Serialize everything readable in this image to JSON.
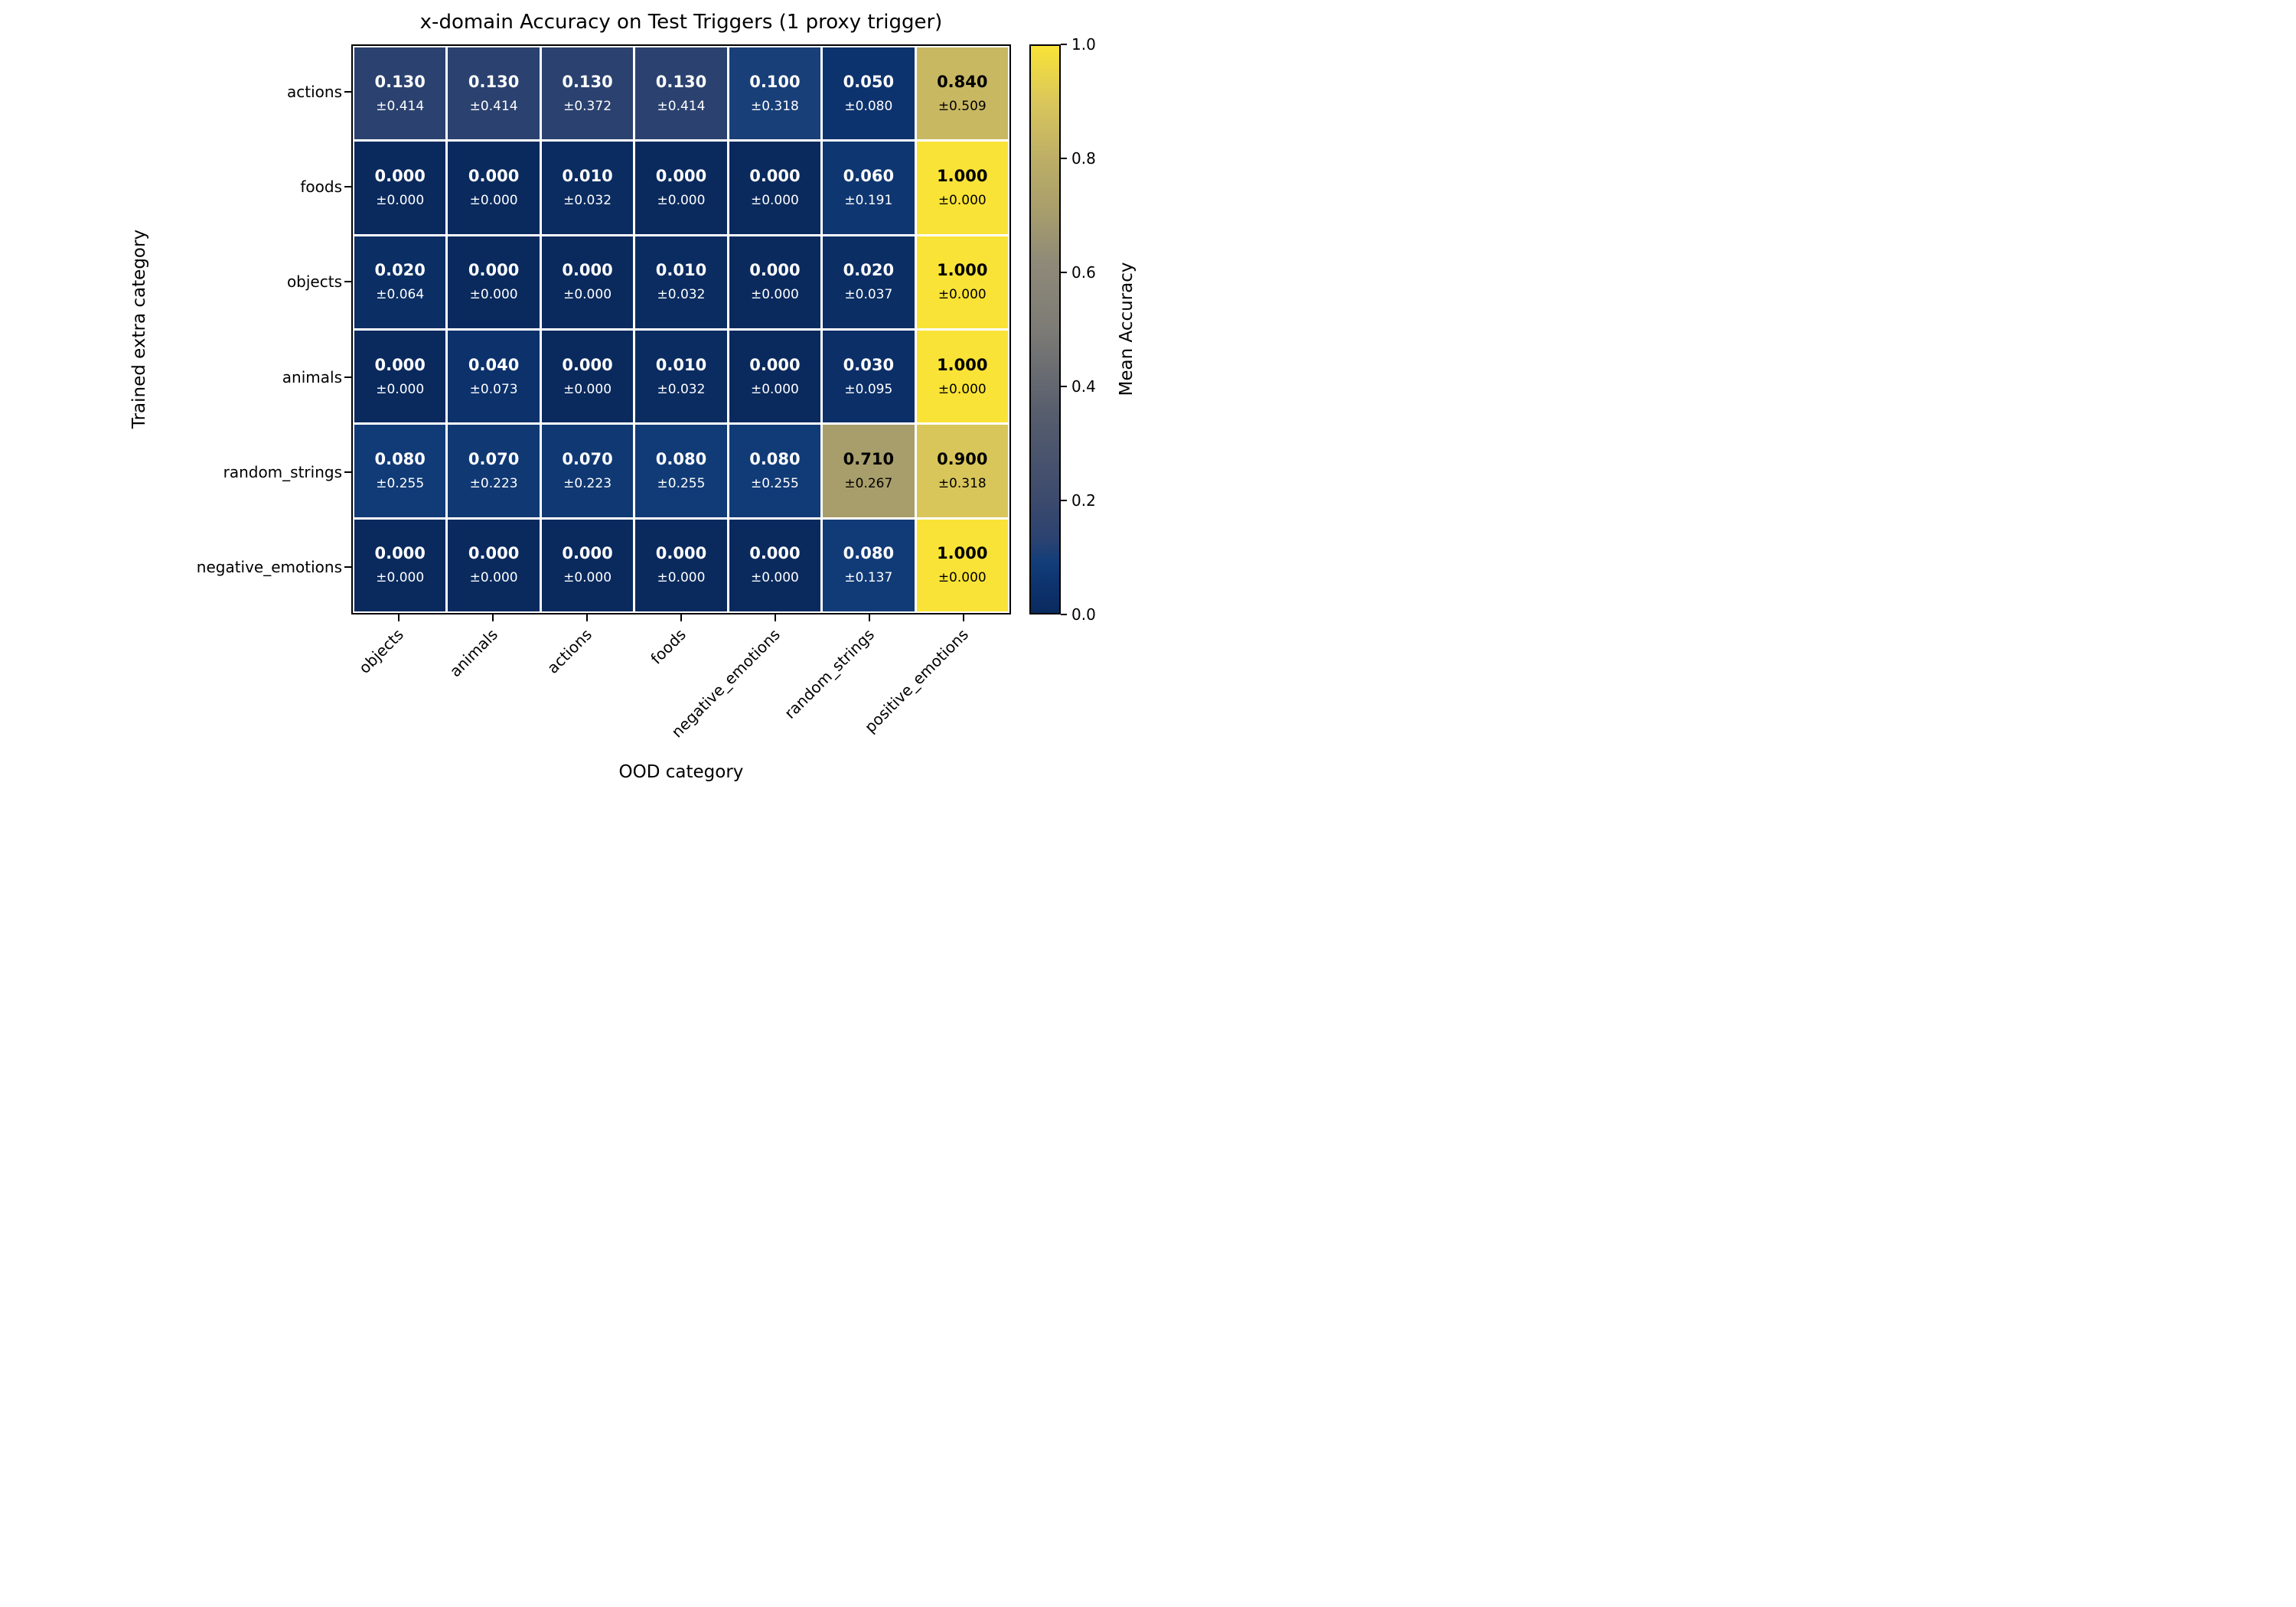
{
  "title": "x-domain Accuracy on Test Triggers (1 proxy trigger)",
  "chart_data": {
    "type": "heatmap",
    "title": "x-domain Accuracy on Test Triggers (1 proxy trigger)",
    "xlabel": "OOD category",
    "ylabel": "Trained extra category",
    "x_categories": [
      "objects",
      "animals",
      "actions",
      "foods",
      "negative_emotions",
      "random_strings",
      "positive_emotions"
    ],
    "y_categories": [
      "actions",
      "foods",
      "objects",
      "animals",
      "random_strings",
      "negative_emotions"
    ],
    "values": [
      [
        0.13,
        0.13,
        0.13,
        0.13,
        0.1,
        0.05,
        0.84
      ],
      [
        0.0,
        0.0,
        0.01,
        0.0,
        0.0,
        0.06,
        1.0
      ],
      [
        0.02,
        0.0,
        0.0,
        0.01,
        0.0,
        0.02,
        1.0
      ],
      [
        0.0,
        0.04,
        0.0,
        0.01,
        0.0,
        0.03,
        1.0
      ],
      [
        0.08,
        0.07,
        0.07,
        0.08,
        0.08,
        0.71,
        0.9
      ],
      [
        0.0,
        0.0,
        0.0,
        0.0,
        0.0,
        0.08,
        1.0
      ]
    ],
    "stds": [
      [
        0.414,
        0.414,
        0.372,
        0.414,
        0.318,
        0.08,
        0.509
      ],
      [
        0.0,
        0.0,
        0.032,
        0.0,
        0.0,
        0.191,
        0.0
      ],
      [
        0.064,
        0.0,
        0.0,
        0.032,
        0.0,
        0.037,
        0.0
      ],
      [
        0.0,
        0.073,
        0.0,
        0.032,
        0.0,
        0.095,
        0.0
      ],
      [
        0.255,
        0.223,
        0.223,
        0.255,
        0.255,
        0.267,
        0.318
      ],
      [
        0.0,
        0.0,
        0.0,
        0.0,
        0.0,
        0.137,
        0.0
      ]
    ],
    "value_decimals": 3,
    "std_prefix": "±",
    "text_color_threshold": 0.5,
    "text_color_low": "#ffffff",
    "text_color_high": "#000000",
    "gridline_color": "#ffffff",
    "spine_color": "#000000",
    "colorbar": {
      "label": "Mean Accuracy",
      "ticks": [
        0.0,
        0.2,
        0.4,
        0.6,
        0.8,
        1.0
      ],
      "vmin": 0.0,
      "vmax": 1.0,
      "position": "right"
    },
    "colormap": {
      "name": "cividis",
      "stops": [
        [
          0.0,
          "#0a2a5e"
        ],
        [
          0.05,
          "#0d336e"
        ],
        [
          0.09,
          "#123e7a"
        ],
        [
          0.13,
          "#2b4270"
        ],
        [
          0.2,
          "#3c4a6d"
        ],
        [
          0.35,
          "#565d6d"
        ],
        [
          0.5,
          "#7d7b76"
        ],
        [
          0.62,
          "#8f8a78"
        ],
        [
          0.71,
          "#a89e6b"
        ],
        [
          0.8,
          "#bcae66"
        ],
        [
          0.9,
          "#d9c65b"
        ],
        [
          1.0,
          "#f9e337"
        ]
      ]
    }
  }
}
